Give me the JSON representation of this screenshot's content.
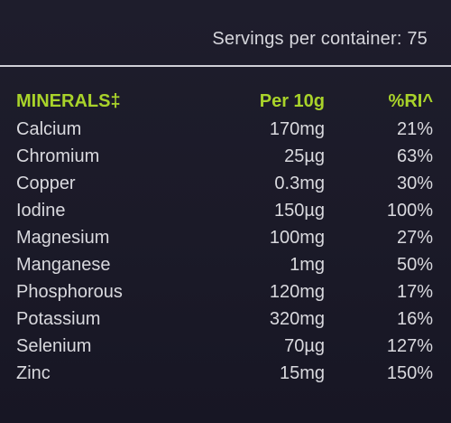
{
  "servings": "Servings per container: 75",
  "table": {
    "headers": {
      "name": "MINERALS‡",
      "per": "Per 10g",
      "ri": "%RI^"
    },
    "rows": [
      {
        "name": "Calcium",
        "per": "170mg",
        "ri": "21%"
      },
      {
        "name": "Chromium",
        "per": "25µg",
        "ri": "63%"
      },
      {
        "name": "Copper",
        "per": "0.3mg",
        "ri": "30%"
      },
      {
        "name": "Iodine",
        "per": "150µg",
        "ri": "100%"
      },
      {
        "name": "Magnesium",
        "per": "100mg",
        "ri": "27%"
      },
      {
        "name": "Manganese",
        "per": "1mg",
        "ri": "50%"
      },
      {
        "name": "Phosphorous",
        "per": "120mg",
        "ri": "17%"
      },
      {
        "name": "Potassium",
        "per": "320mg",
        "ri": "16%"
      },
      {
        "name": "Selenium",
        "per": "70µg",
        "ri": "127%"
      },
      {
        "name": "Zinc",
        "per": "15mg",
        "ri": "150%"
      }
    ]
  },
  "colors": {
    "background": "#1c1b2a",
    "header_accent": "#a9d32a",
    "text": "#d9d9de"
  }
}
